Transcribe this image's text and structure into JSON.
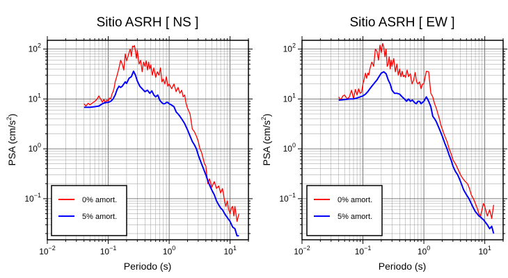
{
  "chart_data": [
    {
      "type": "line",
      "title": "Sitio ASRH [ NS ]",
      "xlabel": "Periodo (s)",
      "ylabel_main": "PSA (cm/s",
      "ylabel_sup": "2",
      "ylabel_close": ")",
      "x_scale": "log",
      "y_scale": "log",
      "xlim": [
        0.01,
        20
      ],
      "ylim": [
        0.015,
        150
      ],
      "grid": true,
      "legend_position": "bottom-left",
      "x_tick_labels": [
        {
          "value": 0.01,
          "base": "10",
          "exp": "−2"
        },
        {
          "value": 0.1,
          "base": "10",
          "exp": "−1"
        },
        {
          "value": 1,
          "base": "10",
          "exp": "0"
        },
        {
          "value": 10,
          "base": "10",
          "exp": "1"
        }
      ],
      "y_tick_labels": [
        {
          "value": 0.1,
          "base": "10",
          "exp": "−1"
        },
        {
          "value": 1,
          "base": "10",
          "exp": "0"
        },
        {
          "value": 10,
          "base": "10",
          "exp": "1"
        },
        {
          "value": 100,
          "base": "10",
          "exp": "2"
        }
      ],
      "series": [
        {
          "name": "0% amort.",
          "color": "#ff0000",
          "x": [
            0.04,
            0.043,
            0.047,
            0.05,
            0.055,
            0.06,
            0.065,
            0.07,
            0.075,
            0.08,
            0.085,
            0.09,
            0.095,
            0.1,
            0.105,
            0.11,
            0.115,
            0.12,
            0.125,
            0.13,
            0.14,
            0.15,
            0.16,
            0.17,
            0.18,
            0.19,
            0.2,
            0.21,
            0.22,
            0.23,
            0.24,
            0.25,
            0.26,
            0.27,
            0.28,
            0.29,
            0.3,
            0.32,
            0.34,
            0.36,
            0.38,
            0.4,
            0.42,
            0.44,
            0.46,
            0.48,
            0.5,
            0.53,
            0.56,
            0.6,
            0.64,
            0.68,
            0.72,
            0.76,
            0.8,
            0.85,
            0.9,
            0.95,
            1.0,
            1.1,
            1.2,
            1.3,
            1.4,
            1.5,
            1.6,
            1.7,
            1.8,
            1.9,
            2.0,
            2.2,
            2.4,
            2.6,
            2.8,
            3.0,
            3.2,
            3.4,
            3.6,
            3.8,
            4.0,
            4.3,
            4.6,
            5.0,
            5.5,
            6.0,
            6.5,
            7.0,
            7.5,
            8.0,
            8.5,
            9.0,
            9.5,
            10.0,
            10.5,
            11.0,
            11.5,
            12.0,
            13.0,
            14.0
          ],
          "y": [
            8.0,
            7.2,
            8.2,
            7.6,
            8.3,
            8.9,
            9.8,
            11.5,
            10.0,
            8.6,
            9.8,
            8.2,
            9.6,
            9.0,
            10.5,
            10.0,
            12.5,
            14.0,
            16.5,
            22.0,
            30.0,
            42.0,
            60.0,
            50.0,
            38.0,
            80.0,
            58.0,
            70.0,
            85.0,
            100.0,
            72.0,
            115.0,
            110.0,
            118.0,
            90.0,
            65.0,
            95.0,
            50.0,
            60.0,
            35.0,
            55.0,
            45.0,
            58.0,
            38.0,
            55.0,
            40.0,
            48.0,
            30.0,
            42.0,
            27.0,
            35.0,
            30.0,
            42.0,
            22.0,
            25.0,
            20.0,
            28.0,
            18.0,
            20.0,
            16.0,
            20.0,
            14.0,
            17.0,
            13.0,
            15.0,
            11.0,
            12.0,
            8.0,
            6.5,
            5.0,
            2.5,
            2.2,
            1.8,
            1.4,
            1.0,
            0.85,
            0.65,
            0.5,
            0.45,
            0.2,
            0.25,
            0.17,
            0.22,
            0.16,
            0.18,
            0.13,
            0.16,
            0.1,
            0.07,
            0.09,
            0.06,
            0.05,
            0.065,
            0.07,
            0.045,
            0.07,
            0.035,
            0.05
          ]
        },
        {
          "name": "5% amort.",
          "color": "#0000ff",
          "x": [
            0.04,
            0.05,
            0.06,
            0.07,
            0.08,
            0.09,
            0.1,
            0.11,
            0.12,
            0.13,
            0.14,
            0.15,
            0.16,
            0.17,
            0.18,
            0.19,
            0.2,
            0.22,
            0.24,
            0.26,
            0.28,
            0.3,
            0.33,
            0.36,
            0.4,
            0.44,
            0.48,
            0.52,
            0.56,
            0.6,
            0.65,
            0.7,
            0.75,
            0.8,
            0.85,
            0.9,
            0.95,
            1.0,
            1.1,
            1.2,
            1.3,
            1.4,
            1.5,
            1.6,
            1.8,
            2.0,
            2.2,
            2.4,
            2.6,
            2.8,
            3.0,
            3.3,
            3.6,
            4.0,
            4.5,
            5.0,
            5.5,
            6.0,
            6.5,
            7.0,
            7.5,
            8.0,
            8.5,
            9.0,
            9.5,
            10.0,
            11.0,
            12.0,
            13.0,
            14.0
          ],
          "y": [
            6.8,
            6.8,
            7.0,
            7.2,
            8.0,
            8.5,
            8.5,
            9.0,
            10.0,
            12.0,
            15.5,
            18.0,
            17.0,
            18.0,
            20.0,
            22.0,
            20.5,
            26.0,
            28.0,
            36.0,
            30.0,
            23.0,
            18.0,
            16.0,
            14.0,
            15.0,
            13.0,
            14.5,
            12.0,
            11.0,
            12.0,
            9.5,
            8.5,
            8.0,
            8.0,
            8.5,
            8.5,
            8.0,
            7.5,
            7.0,
            5.5,
            5.0,
            4.5,
            4.0,
            3.2,
            2.4,
            1.8,
            1.4,
            1.2,
            1.0,
            0.75,
            0.55,
            0.42,
            0.3,
            0.2,
            0.15,
            0.12,
            0.09,
            0.075,
            0.065,
            0.06,
            0.052,
            0.046,
            0.042,
            0.038,
            0.035,
            0.027,
            0.025,
            0.018,
            0.018
          ]
        }
      ]
    },
    {
      "type": "line",
      "title": "Sitio ASRH [ EW ]",
      "xlabel": "Periodo (s)",
      "ylabel_main": "PSA (cm/s",
      "ylabel_sup": "2",
      "ylabel_close": ")",
      "x_scale": "log",
      "y_scale": "log",
      "xlim": [
        0.01,
        20
      ],
      "ylim": [
        0.015,
        150
      ],
      "grid": true,
      "legend_position": "bottom-left",
      "x_tick_labels": [
        {
          "value": 0.01,
          "base": "10",
          "exp": "−2"
        },
        {
          "value": 0.1,
          "base": "10",
          "exp": "−1"
        },
        {
          "value": 1,
          "base": "10",
          "exp": "0"
        },
        {
          "value": 10,
          "base": "10",
          "exp": "1"
        }
      ],
      "y_tick_labels": [
        {
          "value": 0.1,
          "base": "10",
          "exp": "−1"
        },
        {
          "value": 1,
          "base": "10",
          "exp": "0"
        },
        {
          "value": 10,
          "base": "10",
          "exp": "1"
        },
        {
          "value": 100,
          "base": "10",
          "exp": "2"
        }
      ],
      "series": [
        {
          "name": "0% amort.",
          "color": "#ff0000",
          "x": [
            0.04,
            0.043,
            0.047,
            0.05,
            0.055,
            0.06,
            0.065,
            0.07,
            0.075,
            0.08,
            0.085,
            0.09,
            0.095,
            0.1,
            0.105,
            0.11,
            0.115,
            0.12,
            0.125,
            0.13,
            0.14,
            0.15,
            0.16,
            0.17,
            0.18,
            0.19,
            0.2,
            0.21,
            0.22,
            0.23,
            0.24,
            0.25,
            0.26,
            0.27,
            0.28,
            0.29,
            0.3,
            0.32,
            0.34,
            0.36,
            0.38,
            0.4,
            0.42,
            0.44,
            0.46,
            0.48,
            0.5,
            0.53,
            0.56,
            0.6,
            0.64,
            0.68,
            0.72,
            0.76,
            0.8,
            0.85,
            0.9,
            0.95,
            1.0,
            1.05,
            1.1,
            1.2,
            1.3,
            1.4,
            1.5,
            1.6,
            1.7,
            1.8,
            1.9,
            2.0,
            2.2,
            2.4,
            2.6,
            2.8,
            3.0,
            3.3,
            3.6,
            4.0,
            4.4,
            4.8,
            5.2,
            5.6,
            6.0,
            6.5,
            7.0,
            7.5,
            8.0,
            8.5,
            9.0,
            9.5,
            10.0,
            11.0,
            12.0,
            13.0,
            14.0
          ],
          "y": [
            11.0,
            9.5,
            11.5,
            12.0,
            10.0,
            11.0,
            15.0,
            10.0,
            15.5,
            12.0,
            16.0,
            13.0,
            13.5,
            20.0,
            25.0,
            33.0,
            26.0,
            33.0,
            30.0,
            40.0,
            55.0,
            45.0,
            100.0,
            90.0,
            60.0,
            120.0,
            85.0,
            130.0,
            110.0,
            70.0,
            100.0,
            45.0,
            50.0,
            70.0,
            40.0,
            60.0,
            45.0,
            65.0,
            35.0,
            50.0,
            30.0,
            40.0,
            28.0,
            36.0,
            28.0,
            30.0,
            27.0,
            38.0,
            28.0,
            32.0,
            20.0,
            24.0,
            34.0,
            22.0,
            20.0,
            22.0,
            16.0,
            20.0,
            20.0,
            28.0,
            36.0,
            35.0,
            13.0,
            11.0,
            8.0,
            6.5,
            5.0,
            4.0,
            3.0,
            2.5,
            1.8,
            1.4,
            1.0,
            0.8,
            0.6,
            0.5,
            0.4,
            0.3,
            0.25,
            0.22,
            0.2,
            0.16,
            0.12,
            0.1,
            0.08,
            0.065,
            0.05,
            0.045,
            0.06,
            0.08,
            0.07,
            0.045,
            0.06,
            0.04,
            0.075
          ]
        },
        {
          "name": "5% amort.",
          "color": "#0000ff",
          "x": [
            0.04,
            0.05,
            0.06,
            0.07,
            0.08,
            0.09,
            0.1,
            0.11,
            0.12,
            0.13,
            0.14,
            0.15,
            0.16,
            0.17,
            0.18,
            0.19,
            0.2,
            0.22,
            0.24,
            0.26,
            0.28,
            0.3,
            0.33,
            0.36,
            0.4,
            0.44,
            0.48,
            0.52,
            0.56,
            0.6,
            0.65,
            0.7,
            0.75,
            0.8,
            0.85,
            0.9,
            0.95,
            1.0,
            1.05,
            1.1,
            1.2,
            1.3,
            1.4,
            1.5,
            1.6,
            1.8,
            2.0,
            2.2,
            2.4,
            2.6,
            2.8,
            3.0,
            3.3,
            3.6,
            4.0,
            4.5,
            5.0,
            5.5,
            6.0,
            6.5,
            7.0,
            7.5,
            8.0,
            8.5,
            9.0,
            9.5,
            10.0,
            11.0,
            12.0,
            13.0,
            14.0
          ],
          "y": [
            9.5,
            9.7,
            10.0,
            10.0,
            10.5,
            11.0,
            11.5,
            12.5,
            14.0,
            16.0,
            18.0,
            20.0,
            22.0,
            24.0,
            27.0,
            30.0,
            33.0,
            35.0,
            32.0,
            24.0,
            20.0,
            15.0,
            13.0,
            13.0,
            12.5,
            11.0,
            10.0,
            9.0,
            10.0,
            9.0,
            9.5,
            8.5,
            8.0,
            9.0,
            9.0,
            8.0,
            8.5,
            9.0,
            10.0,
            11.0,
            9.0,
            7.0,
            4.5,
            4.0,
            3.5,
            2.5,
            1.8,
            1.3,
            1.0,
            0.75,
            0.6,
            0.45,
            0.35,
            0.3,
            0.22,
            0.15,
            0.12,
            0.1,
            0.08,
            0.065,
            0.055,
            0.05,
            0.045,
            0.043,
            0.04,
            0.038,
            0.035,
            0.03,
            0.025,
            0.028,
            0.02
          ]
        }
      ]
    }
  ]
}
